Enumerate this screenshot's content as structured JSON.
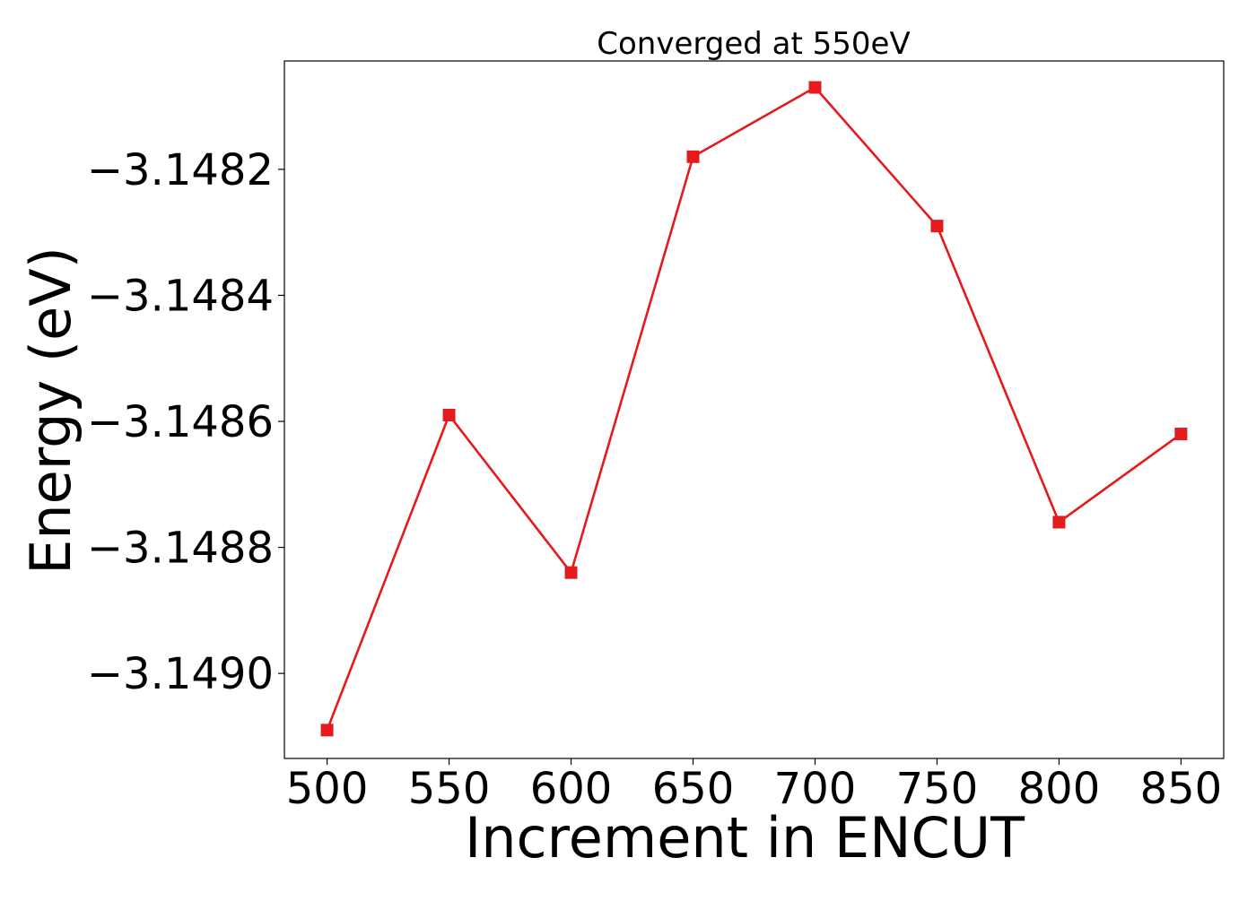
{
  "chart_data": {
    "type": "line",
    "title": "Converged at 550eV",
    "xlabel": "Increment in ENCUT",
    "ylabel": "Energy (eV)",
    "x": [
      500,
      550,
      600,
      650,
      700,
      750,
      800,
      850
    ],
    "series": [
      {
        "values": [
          -3.14909,
          -3.14859,
          -3.14884,
          -3.14818,
          -3.14807,
          -3.14829,
          -3.14876,
          -3.14862
        ],
        "color": "#e41a1c",
        "marker": "square"
      }
    ],
    "xticks": [
      500,
      550,
      600,
      650,
      700,
      750,
      800,
      850
    ],
    "xtick_labels": [
      "500",
      "550",
      "600",
      "650",
      "700",
      "750",
      "800",
      "850"
    ],
    "yticks": [
      -3.1482,
      -3.1484,
      -3.1486,
      -3.1488,
      -3.149
    ],
    "ytick_labels": [
      "−3.1482",
      "−3.1484",
      "−3.1486",
      "−3.1488",
      "−3.1490"
    ],
    "xlim": [
      482.5,
      867.5
    ],
    "ylim": [
      -3.149135,
      -3.148028
    ],
    "grid": false,
    "legend": false
  }
}
